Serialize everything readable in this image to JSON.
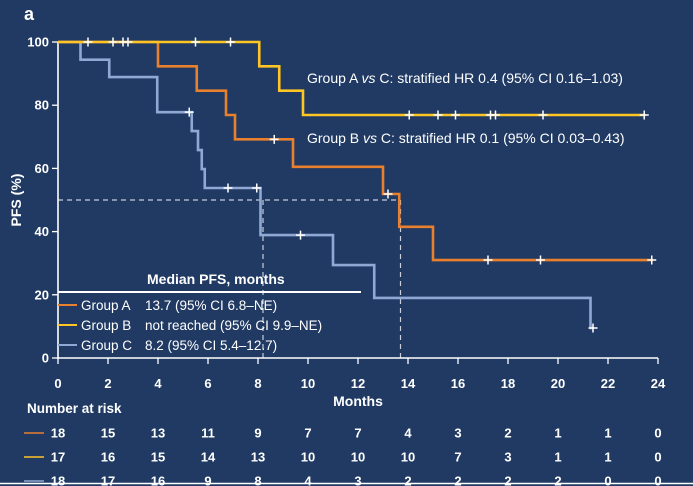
{
  "panel_label": "a",
  "annotations": [
    {
      "pre": "Group A ",
      "vs": "vs",
      "post": " C: stratified HR 0.4 (95% CI 0.16–1.03)"
    },
    {
      "pre": "Group B ",
      "vs": "vs",
      "post": " C: stratified HR 0.1 (95% CI 0.03–0.43)"
    }
  ],
  "legend": {
    "header": "Median PFS, months",
    "rows": [
      {
        "name": "Group A",
        "value": "13.7 (95% CI 6.8–NE)",
        "color_key": "group_a"
      },
      {
        "name": "Group B",
        "value": "not reached (95% CI 9.9–NE)",
        "color_key": "group_b"
      },
      {
        "name": "Group C",
        "value": "8.2 (95% CI 5.4–12.7)",
        "color_key": "group_c"
      }
    ]
  },
  "colors": {
    "background": "#203A64",
    "text": "#FFFFFF",
    "axis": "#FFFFFF",
    "dashed_guide": "#C8CEDA",
    "group_a": "#E8802D",
    "group_b": "#FFC524",
    "group_c": "#8FA9D4"
  },
  "at_risk": {
    "label": "Number at risk",
    "times": [
      0,
      2,
      4,
      6,
      8,
      10,
      12,
      14,
      16,
      18,
      20,
      22,
      24
    ],
    "rows": [
      {
        "group": "Group A",
        "color_key": "group_a",
        "counts": [
          18,
          15,
          13,
          11,
          9,
          7,
          7,
          4,
          3,
          2,
          1,
          1,
          0
        ]
      },
      {
        "group": "Group B",
        "color_key": "group_b",
        "counts": [
          17,
          16,
          15,
          14,
          13,
          10,
          10,
          10,
          7,
          3,
          1,
          1,
          0
        ]
      },
      {
        "group": "Group C",
        "color_key": "group_c",
        "counts": [
          18,
          17,
          16,
          9,
          8,
          4,
          3,
          2,
          2,
          2,
          2,
          0,
          0
        ]
      }
    ]
  },
  "chart_data": {
    "type": "line",
    "subtype": "kaplan-meier-step",
    "title": "",
    "xlabel": "Months",
    "ylabel": "PFS (%)",
    "xlim": [
      0,
      24
    ],
    "ylim": [
      0,
      100
    ],
    "xticks": [
      0,
      2,
      4,
      6,
      8,
      10,
      12,
      14,
      16,
      18,
      20,
      22,
      24
    ],
    "yticks": [
      0,
      20,
      40,
      60,
      80,
      100
    ],
    "grid": false,
    "median_guides": {
      "pct": 50,
      "months": [
        8.2,
        13.7
      ]
    },
    "series": [
      {
        "name": "Group C",
        "color_key": "group_c",
        "median_months": 8.2,
        "drops": [
          [
            0.9,
            94.4
          ],
          [
            2.05,
            88.9
          ],
          [
            3.97,
            77.8
          ],
          [
            5.35,
            71.8
          ],
          [
            5.6,
            65.8
          ],
          [
            5.75,
            59.8
          ],
          [
            5.87,
            53.8
          ],
          [
            8.1,
            38.9
          ],
          [
            11.0,
            29.4
          ],
          [
            12.65,
            19.0
          ],
          [
            21.3,
            9.5
          ]
        ],
        "end": 21.4,
        "censors": [
          [
            5.25,
            77.8
          ],
          [
            6.8,
            53.8
          ],
          [
            7.95,
            53.8
          ],
          [
            9.7,
            38.9
          ],
          [
            21.4,
            9.5
          ]
        ]
      },
      {
        "name": "Group A",
        "color_key": "group_a",
        "median_months": 13.7,
        "drops": [
          [
            4.0,
            92.3
          ],
          [
            5.55,
            84.6
          ],
          [
            6.72,
            76.9
          ],
          [
            7.08,
            69.2
          ],
          [
            9.4,
            60.5
          ],
          [
            13.0,
            51.9
          ],
          [
            13.65,
            41.5
          ],
          [
            15.0,
            31.0
          ]
        ],
        "end": 23.8,
        "censors": [
          [
            8.65,
            69.2
          ],
          [
            13.2,
            51.9
          ],
          [
            17.2,
            31.0
          ],
          [
            19.3,
            31.0
          ],
          [
            23.75,
            31.0
          ]
        ]
      },
      {
        "name": "Group B",
        "color_key": "group_b",
        "median_months": null,
        "drops": [
          [
            8.05,
            92.3
          ],
          [
            8.85,
            84.6
          ],
          [
            9.8,
            76.9
          ]
        ],
        "end": 23.5,
        "censors": [
          [
            1.2,
            100
          ],
          [
            2.2,
            100
          ],
          [
            2.6,
            100
          ],
          [
            2.8,
            100
          ],
          [
            5.5,
            100
          ],
          [
            6.9,
            100
          ],
          [
            14.05,
            76.9
          ],
          [
            15.2,
            76.9
          ],
          [
            15.9,
            76.9
          ],
          [
            17.3,
            76.9
          ],
          [
            17.5,
            76.9
          ],
          [
            19.4,
            76.9
          ],
          [
            23.45,
            76.9
          ]
        ]
      }
    ]
  }
}
